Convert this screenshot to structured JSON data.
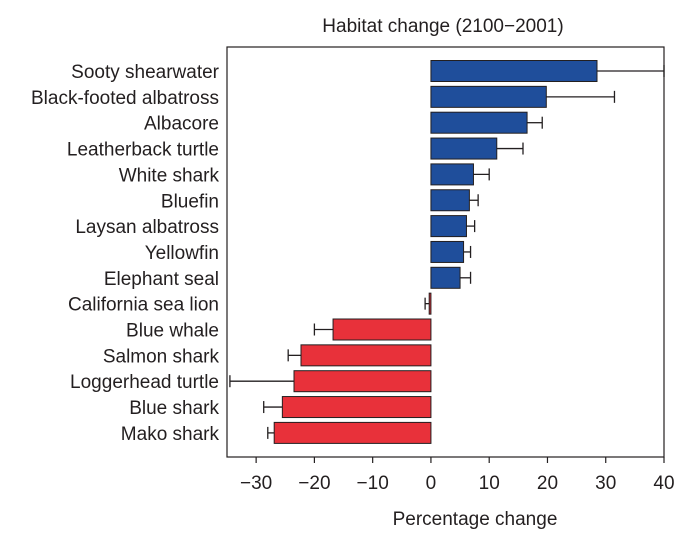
{
  "chart_data": {
    "type": "bar",
    "orientation": "horizontal",
    "title": "Habitat change (2100−2001)",
    "xlabel": "Percentage change",
    "ylabel": "",
    "xlim": [
      -35,
      40
    ],
    "xticks": [
      -30,
      -20,
      -10,
      0,
      10,
      20,
      30,
      40
    ],
    "xtick_labels": [
      "−30",
      "−20",
      "−10",
      "0",
      "10",
      "20",
      "30",
      "40"
    ],
    "grid": false,
    "legend": "none",
    "colors": {
      "positive": "#1f4e9b",
      "negative": "#e8313a",
      "edge": "#231f20"
    },
    "categories": [
      "Sooty shearwater",
      "Black-footed albatross",
      "Albacore",
      "Leatherback  turtle",
      "White shark",
      "Bluefin",
      "Laysan albatross",
      "Yellowfin",
      "Elephant seal",
      "California sea lion",
      "Blue whale",
      "Salmon shark",
      "Loggerhead turtle",
      "Blue shark",
      "Mako shark"
    ],
    "values": [
      28.5,
      19.8,
      16.5,
      11.3,
      7.3,
      6.6,
      6.1,
      5.6,
      5.0,
      -0.3,
      -16.8,
      -22.3,
      -23.5,
      -25.5,
      -26.9
    ],
    "error_bar_ends": [
      40,
      31.5,
      19.1,
      15.8,
      10.0,
      8.1,
      7.5,
      6.8,
      6.8,
      -1.0,
      -20.0,
      -24.5,
      -34.5,
      -28.7,
      -28.0
    ]
  }
}
